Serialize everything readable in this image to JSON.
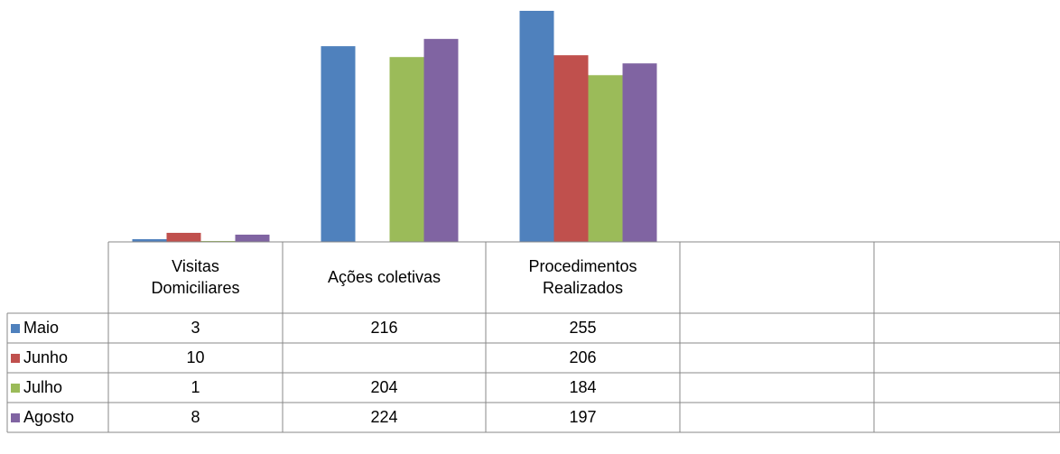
{
  "chart_data": {
    "type": "bar",
    "categories": [
      "Visitas Domiciliares",
      "Ações coletivas",
      "Procedimentos Realizados",
      null,
      null
    ],
    "series": [
      {
        "name": "Maio",
        "color": "#4f81bd",
        "values": [
          3,
          216,
          255,
          null,
          null
        ]
      },
      {
        "name": "Junho",
        "color": "#c0504d",
        "values": [
          10,
          null,
          206,
          null,
          null
        ]
      },
      {
        "name": "Julho",
        "color": "#9bbb59",
        "values": [
          1,
          204,
          184,
          null,
          null
        ]
      },
      {
        "name": "Agosto",
        "color": "#8064a2",
        "values": [
          8,
          224,
          197,
          null,
          null
        ]
      }
    ],
    "ylim": [
      0,
      255
    ],
    "data_table": true
  }
}
